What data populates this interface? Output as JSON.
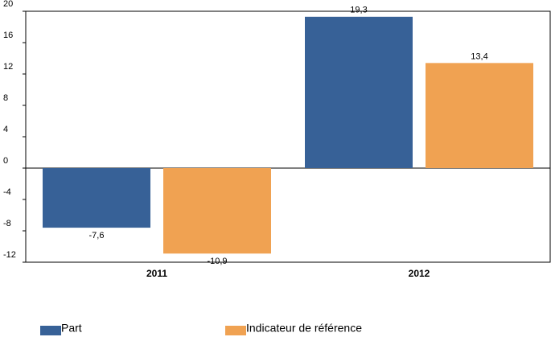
{
  "chart_data": {
    "type": "bar",
    "categories": [
      "2011",
      "2012"
    ],
    "series": [
      {
        "name": "Part",
        "color": "#376197",
        "values": [
          -7.6,
          19.3
        ],
        "value_labels": [
          "-7,6",
          "19,3"
        ]
      },
      {
        "name": "Indicateur de référence",
        "color": "#f0a252",
        "values": [
          -10.9,
          13.4
        ],
        "value_labels": [
          "-10,9",
          "13,4"
        ]
      }
    ],
    "ylim": [
      -12,
      20
    ],
    "yticks": [
      -12,
      -8,
      -4,
      0,
      4,
      8,
      12,
      16,
      20
    ]
  }
}
